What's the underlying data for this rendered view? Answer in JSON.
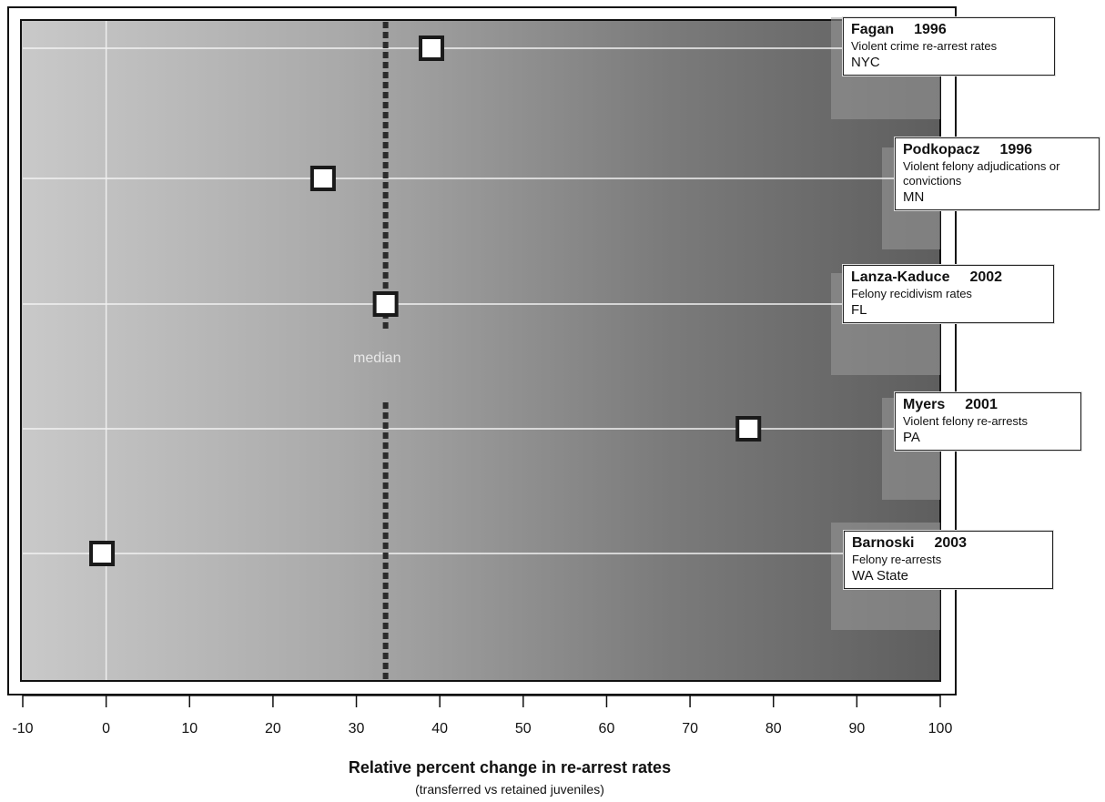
{
  "chart_data": {
    "type": "scatter",
    "xlabel": "Relative percent change in re-arrest rates",
    "xlabel_sub": "(transferred vs retained juveniles)",
    "xlim": [
      -10,
      100
    ],
    "xticks": [
      -10,
      0,
      10,
      20,
      30,
      40,
      50,
      60,
      70,
      80,
      90,
      100
    ],
    "grid": true,
    "median": {
      "value": 33.5,
      "label": "median"
    },
    "points": [
      {
        "author": "Fagan",
        "year": "1996",
        "measure": "Violent crime re-arrest rates",
        "location": "NYC",
        "x": 39
      },
      {
        "author": "Podkopacz",
        "year": "1996",
        "measure": "Violent felony adjudications or convictions",
        "location": "MN",
        "x": 26
      },
      {
        "author": "Lanza-Kaduce",
        "year": "2002",
        "measure": "Felony recidivism rates",
        "location": "FL",
        "x": 33.5
      },
      {
        "author": "Myers",
        "year": "2001",
        "measure": "Violent felony re-arrests",
        "location": "PA",
        "x": 77
      },
      {
        "author": "Barnoski",
        "year": "2003",
        "measure": "Felony re-arrests",
        "location": "WA State",
        "x": -0.5
      }
    ]
  }
}
